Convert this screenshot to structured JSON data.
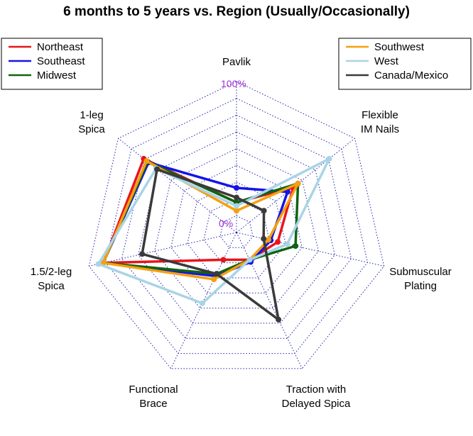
{
  "chart_data": {
    "type": "radar",
    "title": "6 months to 5 years vs. Region (Usually/Occasionally)",
    "axes": [
      "Pavlik",
      "Flexible\nIM Nails",
      "Submuscular\nPlating",
      "Traction with\nDelayed Spica",
      "Functional\nBrace",
      "1.5/2-leg\nSpica",
      "1-leg\nSpica"
    ],
    "range_labels": [
      "0%",
      "100%"
    ],
    "range": [
      -25,
      100
    ],
    "grid_levels": 9,
    "series": [
      {
        "name": "Northeast",
        "color": "#e8141b",
        "values": [
          0,
          35,
          10,
          0,
          0,
          88,
          73
        ]
      },
      {
        "name": "Southeast",
        "color": "#1414e8",
        "values": [
          12,
          29,
          4,
          2,
          15,
          88,
          68
        ]
      },
      {
        "name": "Midwest",
        "color": "#0e6410",
        "values": [
          0,
          40,
          25,
          0,
          13,
          88,
          69
        ]
      },
      {
        "name": "Southwest",
        "color": "#f5a00f",
        "values": [
          -7,
          40,
          2,
          0,
          18,
          88,
          70
        ]
      },
      {
        "name": "West",
        "color": "#a9d4e6",
        "values": [
          -3,
          73,
          18,
          0,
          40,
          92,
          60
        ]
      },
      {
        "name": "Canada/Mexico",
        "color": "#3a3a3a",
        "values": [
          4,
          4,
          -2,
          55,
          13,
          55,
          59
        ]
      }
    ],
    "legend": {
      "left": [
        "Northeast",
        "Southeast",
        "Midwest"
      ],
      "right": [
        "Southwest",
        "West",
        "Canada/Mexico"
      ]
    }
  }
}
